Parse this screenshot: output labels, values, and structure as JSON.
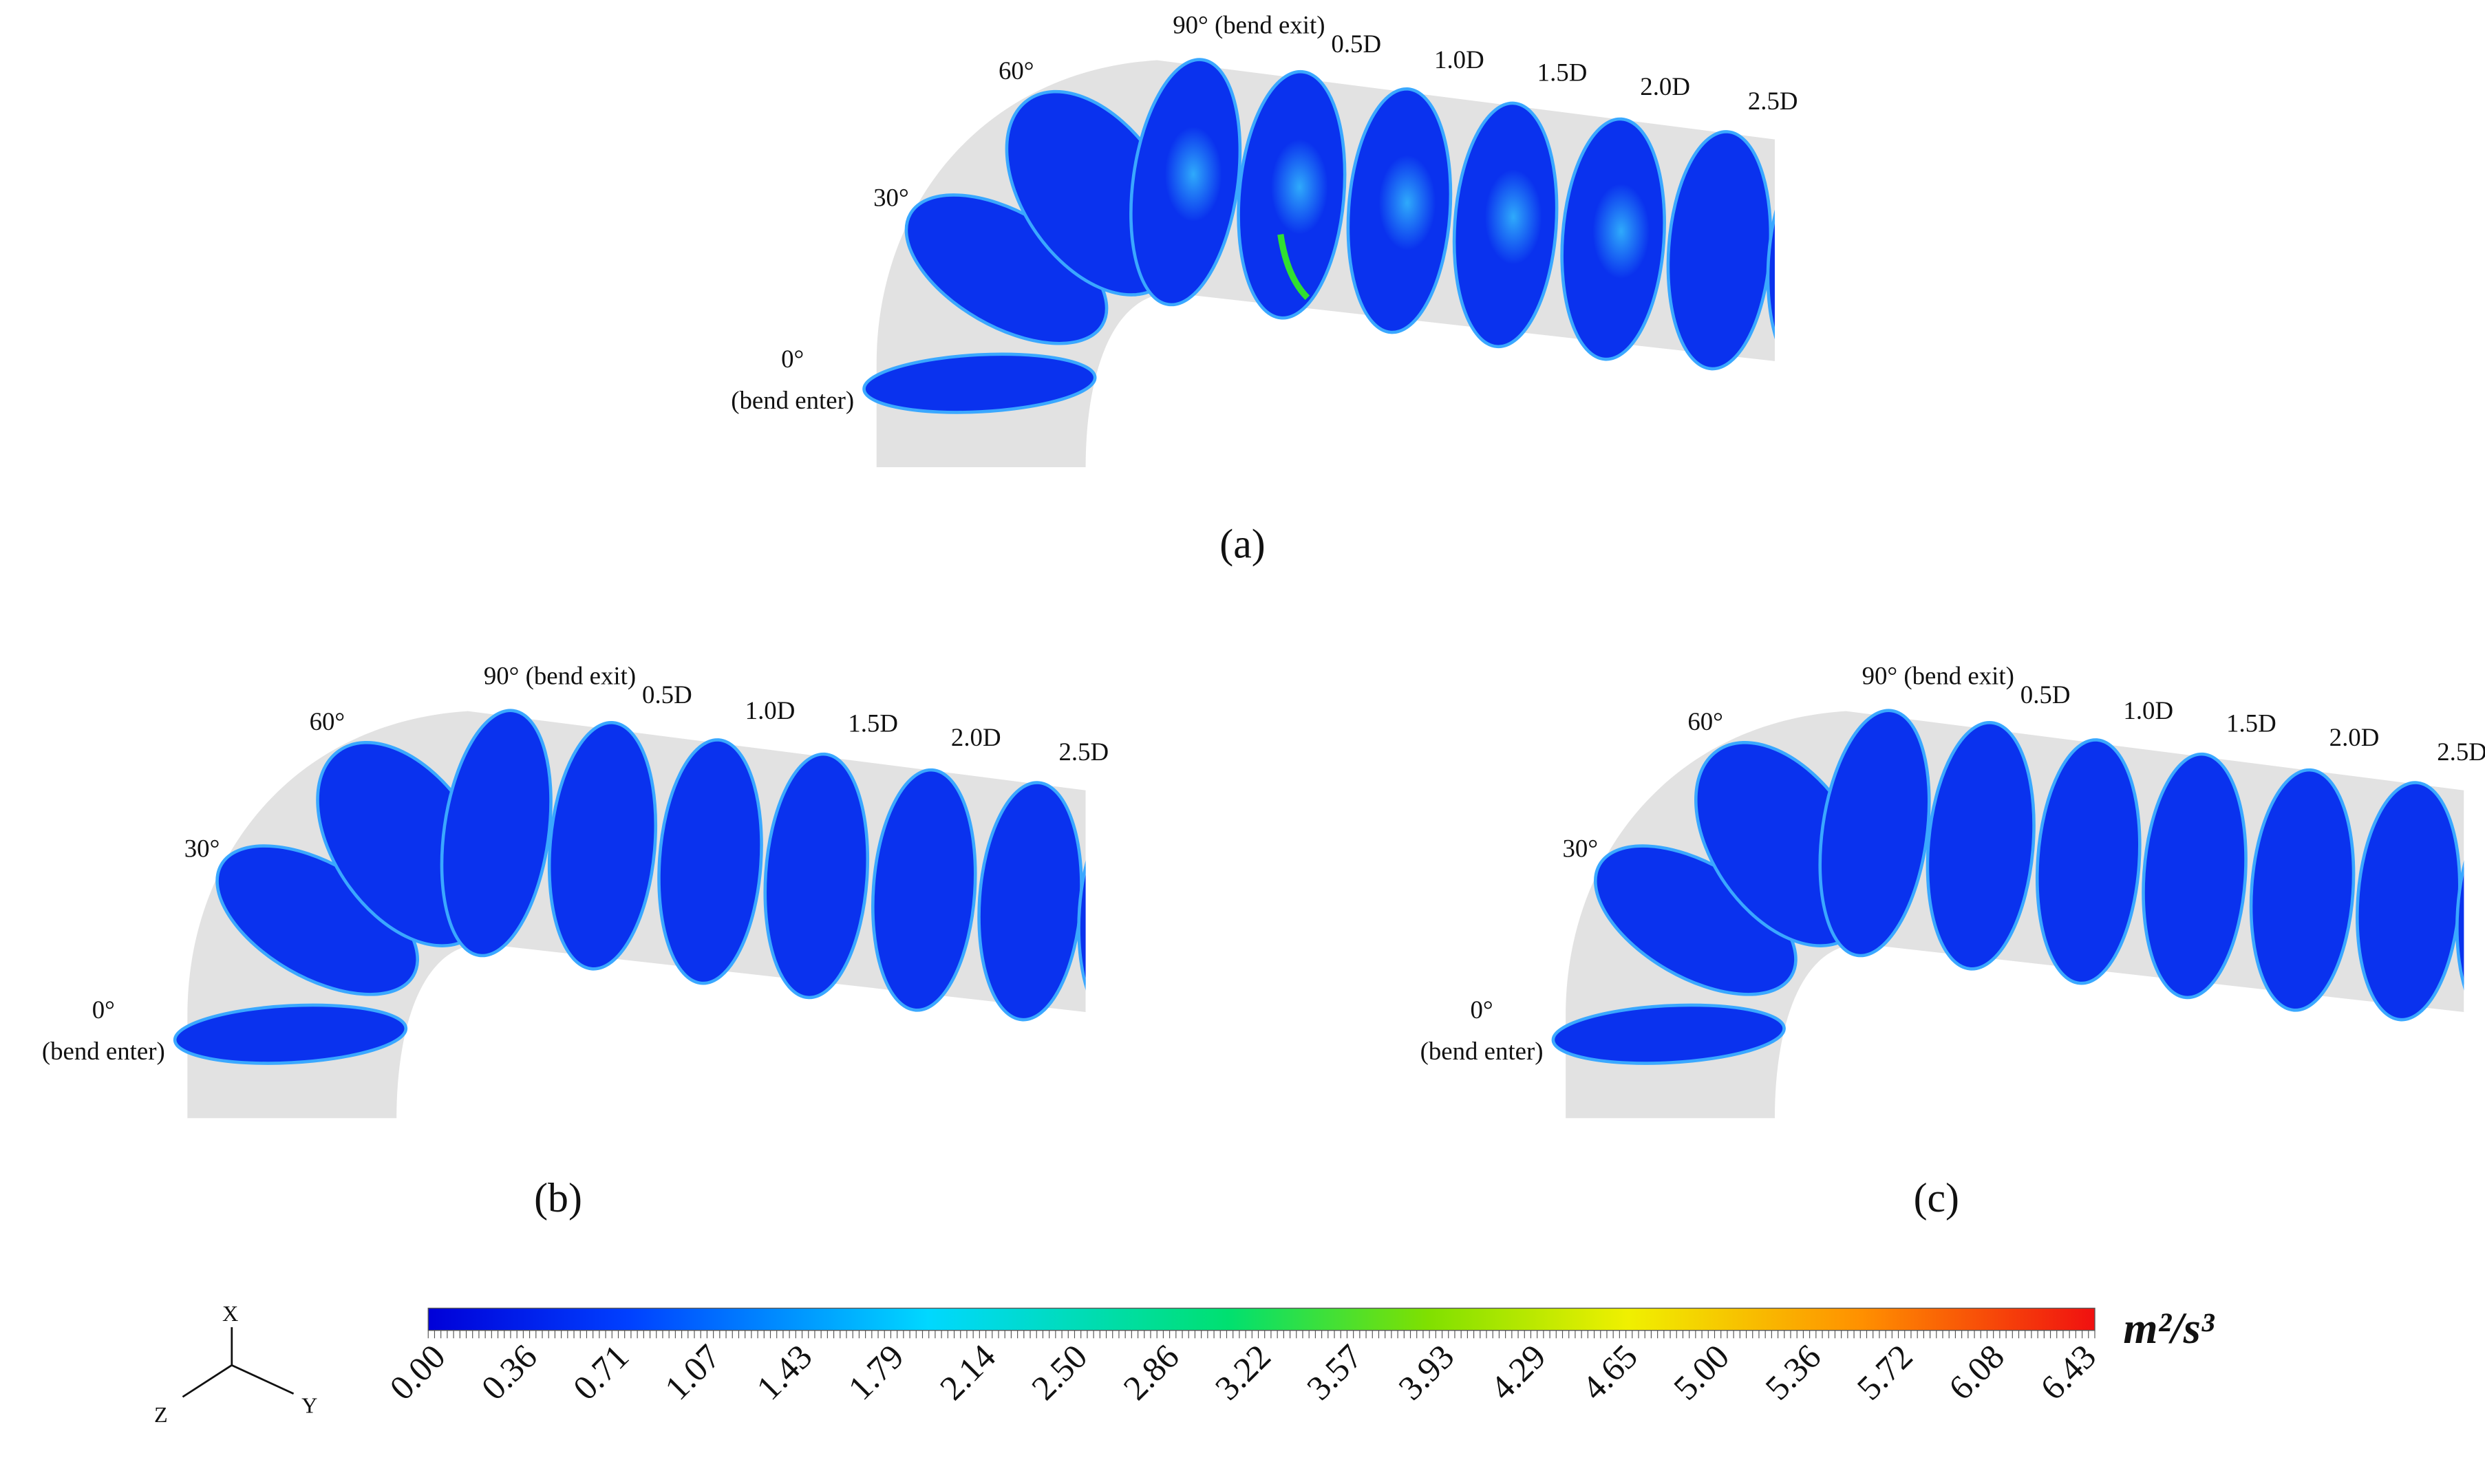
{
  "panels": [
    {
      "label": "(a)",
      "annotations": [
        "0°",
        "(bend enter)",
        "30°",
        "60°",
        "90° (bend exit)",
        "0.5D",
        "1.0D",
        "1.5D",
        "2.0D",
        "2.5D"
      ]
    },
    {
      "label": "(b)",
      "annotations": [
        "0°",
        "(bend enter)",
        "30°",
        "60°",
        "90° (bend exit)",
        "0.5D",
        "1.0D",
        "1.5D",
        "2.0D",
        "2.5D"
      ]
    },
    {
      "label": "(c)",
      "annotations": [
        "0°",
        "(bend enter)",
        "30°",
        "60°",
        "90° (bend exit)",
        "0.5D",
        "1.0D",
        "1.5D",
        "2.0D",
        "2.5D"
      ]
    }
  ],
  "colorbar": {
    "ticks": [
      "0.00",
      "0.36",
      "0.71",
      "1.07",
      "1.43",
      "1.79",
      "2.14",
      "2.50",
      "2.86",
      "3.22",
      "3.57",
      "3.93",
      "4.29",
      "4.65",
      "5.00",
      "5.36",
      "5.72",
      "6.08",
      "6.43"
    ],
    "unit": "m²/s³"
  },
  "axes": {
    "x": "X",
    "y": "Y",
    "z": "Z"
  }
}
